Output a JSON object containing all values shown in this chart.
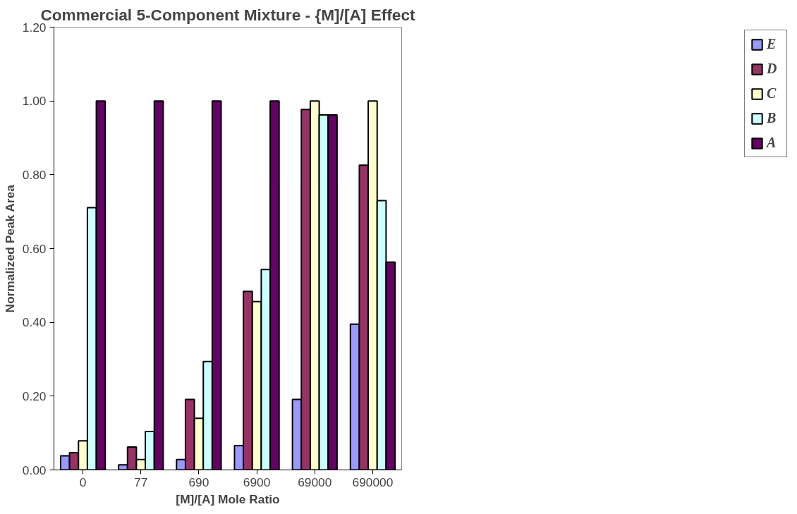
{
  "chart_data": {
    "type": "bar",
    "title": "Commercial 5-Component Mixture - {M]/[A] Effect",
    "xlabel": "[M]/[A] Mole Ratio",
    "ylabel": "Normalized Peak Area",
    "categories": [
      "0",
      "77",
      "690",
      "6900",
      "69000",
      "690000"
    ],
    "series": [
      {
        "name": "E",
        "color": "#9999ff",
        "values": [
          0.038,
          0.014,
          0.028,
          0.066,
          0.191,
          0.395
        ]
      },
      {
        "name": "D",
        "color": "#993366",
        "values": [
          0.047,
          0.062,
          0.191,
          0.484,
          0.977,
          0.826
        ]
      },
      {
        "name": "C",
        "color": "#ffffcc",
        "values": [
          0.079,
          0.028,
          0.14,
          0.456,
          1.0,
          1.0
        ]
      },
      {
        "name": "B",
        "color": "#ccffff",
        "values": [
          0.711,
          0.104,
          0.294,
          0.543,
          0.962,
          0.73
        ]
      },
      {
        "name": "A",
        "color": "#660066",
        "values": [
          1.0,
          1.0,
          1.0,
          1.0,
          0.962,
          0.563
        ]
      }
    ],
    "ylim": [
      0,
      1.2
    ],
    "yticks": [
      {
        "value": 0,
        "label": "0.00"
      },
      {
        "value": 0.2,
        "label": "0.20"
      },
      {
        "value": 0.4,
        "label": "0.40"
      },
      {
        "value": 0.6,
        "label": "0.60"
      },
      {
        "value": 0.8,
        "label": "0.80"
      },
      {
        "value": 1.0,
        "label": "1.00"
      },
      {
        "value": 1.2,
        "label": "1.20"
      }
    ],
    "legend": "right"
  }
}
